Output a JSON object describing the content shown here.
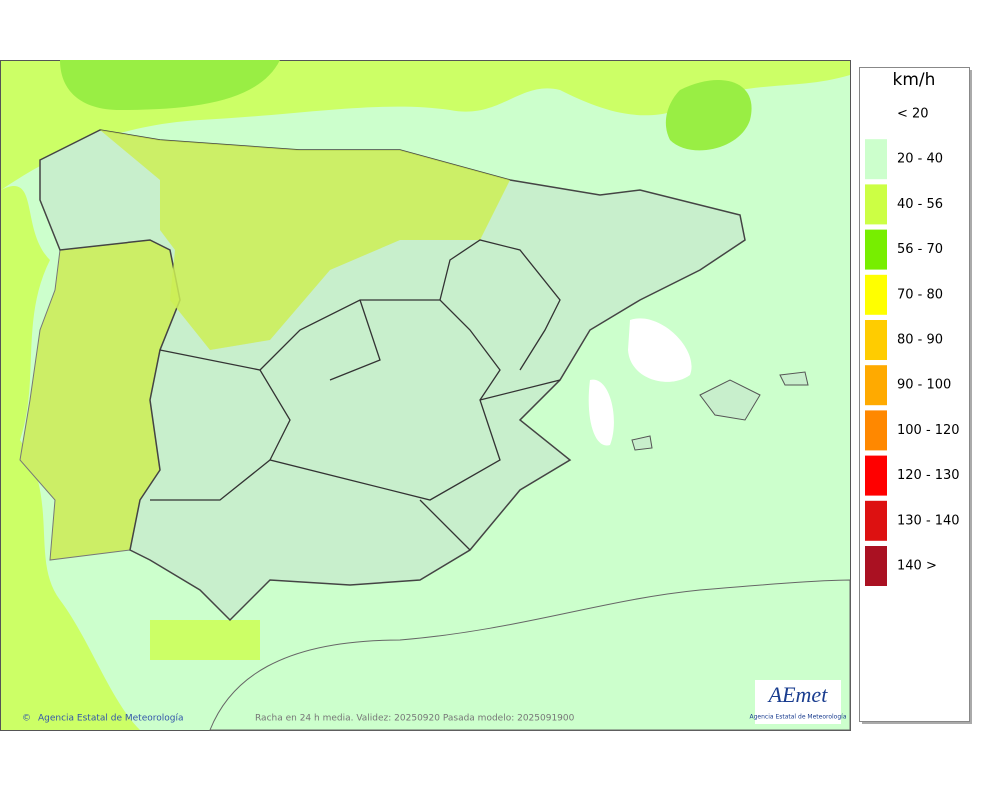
{
  "legend": {
    "title": "km/h",
    "items": [
      {
        "label": "< 20",
        "color": "#ffffff"
      },
      {
        "label": "20 - 40",
        "color": "#ccffcc"
      },
      {
        "label": "40 - 56",
        "color": "#ccff44"
      },
      {
        "label": "56 - 70",
        "color": "#77ee00"
      },
      {
        "label": "70 - 80",
        "color": "#ffff00"
      },
      {
        "label": "80 - 90",
        "color": "#ffcc00"
      },
      {
        "label": "90 - 100",
        "color": "#ffaa00"
      },
      {
        "label": "100 - 120",
        "color": "#ff8800"
      },
      {
        "label": "120 - 130",
        "color": "#ff0000"
      },
      {
        "label": "130 - 140",
        "color": "#dd1111"
      },
      {
        "label": "140 >",
        "color": "#aa1122"
      }
    ]
  },
  "footer": {
    "credit": "Agencia Estatal de Meteorología",
    "caption": "Racha en 24 h media. Validez: 20250920 Pasada modelo: 2025091900"
  },
  "logo": {
    "name": "AEmet",
    "subtitle": "Agencia Estatal de Meteorología"
  }
}
